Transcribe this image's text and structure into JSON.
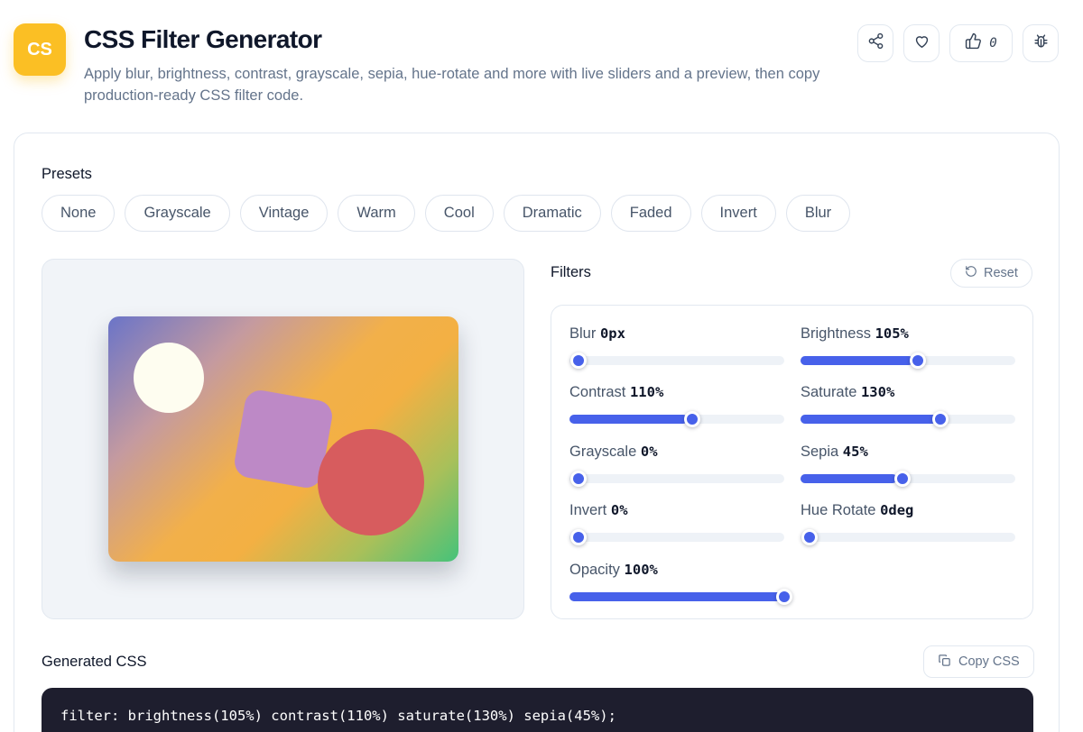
{
  "header": {
    "app_icon_text": "CS",
    "title": "CSS Filter Generator",
    "subtitle": "Apply blur, brightness, contrast, grayscale, sepia, hue-rotate and more with live sliders and a preview, then copy production-ready CSS filter code.",
    "like_count": "0",
    "icons": [
      "share-icon",
      "heart-icon",
      "thumbs-up-icon",
      "bug-icon"
    ]
  },
  "presets": {
    "label": "Presets",
    "items": [
      "None",
      "Grayscale",
      "Vintage",
      "Warm",
      "Cool",
      "Dramatic",
      "Faded",
      "Invert",
      "Blur"
    ]
  },
  "filters": {
    "label": "Filters",
    "reset_label": "Reset",
    "sliders": [
      {
        "label": "Blur",
        "value": "0px",
        "fraction": 0.0
      },
      {
        "label": "Brightness",
        "value": "105%",
        "fraction": 0.525
      },
      {
        "label": "Contrast",
        "value": "110%",
        "fraction": 0.55
      },
      {
        "label": "Saturate",
        "value": "130%",
        "fraction": 0.633
      },
      {
        "label": "Grayscale",
        "value": "0%",
        "fraction": 0.0
      },
      {
        "label": "Sepia",
        "value": "45%",
        "fraction": 0.45
      },
      {
        "label": "Invert",
        "value": "0%",
        "fraction": 0.0
      },
      {
        "label": "Hue Rotate",
        "value": "0deg",
        "fraction": 0.0
      },
      {
        "label": "Opacity",
        "value": "100%",
        "fraction": 1.0
      }
    ]
  },
  "generated_css": {
    "label": "Generated CSS",
    "copy_label": "Copy CSS",
    "code": "filter: brightness(105%) contrast(110%) saturate(130%) sepia(45%);"
  },
  "colors": {
    "accent": "#4761ea",
    "app_icon": "#fbbf24",
    "code_background": "#1e1e2e"
  }
}
